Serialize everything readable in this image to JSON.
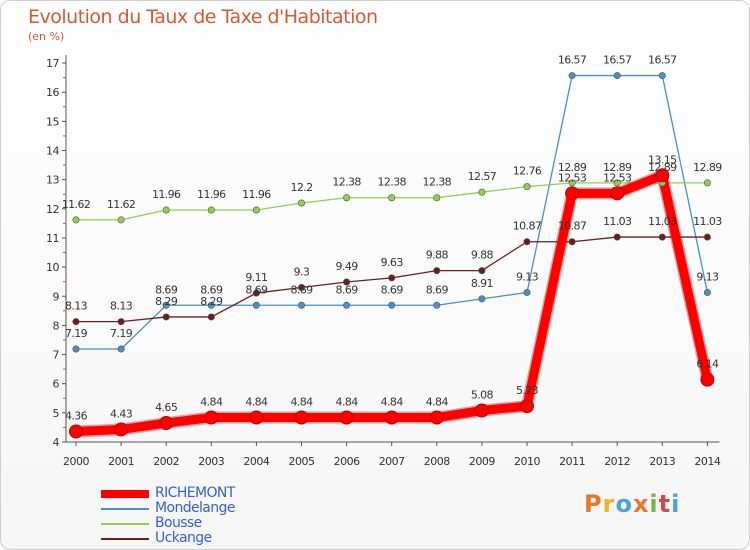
{
  "header": {
    "title": "Evolution du Taux de Taxe d'Habitation",
    "unit": "(en %)"
  },
  "logo": {
    "text": "Proxiti",
    "colors": [
      "#e8772e",
      "#f0b51e",
      "#4aa3df",
      "#e8772e",
      "#7ab648",
      "#d44",
      "#4aa3df"
    ]
  },
  "chart_data": {
    "type": "line",
    "title": "Evolution du Taux de Taxe d'Habitation",
    "ylabel": "(en %)",
    "xlabel": "",
    "x": [
      "2000",
      "2001",
      "2002",
      "2003",
      "2004",
      "2005",
      "2006",
      "2007",
      "2008",
      "2009",
      "2010",
      "2011",
      "2012",
      "2013",
      "2014"
    ],
    "ylim": [
      4,
      17
    ],
    "yticks": [
      "4",
      "5",
      "6",
      "7",
      "8",
      "9",
      "10",
      "11",
      "12",
      "13",
      "14",
      "15",
      "16",
      "17"
    ],
    "grid": false,
    "legend_position": "bottom-left",
    "series": [
      {
        "name": "RICHEMONT",
        "color": "#ff0000",
        "thick": true,
        "values": [
          4.36,
          4.43,
          4.65,
          4.84,
          4.84,
          4.84,
          4.84,
          4.84,
          4.84,
          5.08,
          5.23,
          12.53,
          12.53,
          13.15,
          6.14
        ],
        "labels": [
          "4.36",
          "4.43",
          "4.65",
          "4.84",
          "4.84",
          "4.84",
          "4.84",
          "4.84",
          "4.84",
          "5.08",
          "5.23",
          "12.53",
          "12.53",
          "13.15",
          "6.14"
        ]
      },
      {
        "name": "Mondelange",
        "color": "#4b8fc7",
        "thick": false,
        "values": [
          7.19,
          7.19,
          8.69,
          8.69,
          8.69,
          8.69,
          8.69,
          8.69,
          8.69,
          8.91,
          9.13,
          16.57,
          16.57,
          16.57,
          9.13
        ],
        "labels": [
          "7.19",
          "7.19",
          "8.69",
          "8.69",
          "8.69",
          "8.69",
          "8.69",
          "8.69",
          "8.69",
          "8.91",
          "9.13",
          "16.57",
          "16.57",
          "16.57",
          "9.13"
        ]
      },
      {
        "name": "Bousse",
        "color": "#8fd14f",
        "thick": false,
        "values": [
          11.62,
          11.62,
          11.96,
          11.96,
          11.96,
          12.2,
          12.38,
          12.38,
          12.38,
          12.57,
          12.76,
          12.89,
          12.89,
          12.89,
          12.89
        ],
        "labels": [
          "11.62",
          "11.62",
          "11.96",
          "11.96",
          "11.96",
          "12.2",
          "12.38",
          "12.38",
          "12.38",
          "12.57",
          "12.76",
          "12.89",
          "12.89",
          "12.89",
          "12.89"
        ]
      },
      {
        "name": "Uckange",
        "color": "#6b1e1e",
        "thick": false,
        "values": [
          8.13,
          8.13,
          8.29,
          8.29,
          9.11,
          9.3,
          9.49,
          9.63,
          9.88,
          9.88,
          10.87,
          10.87,
          11.03,
          11.03,
          11.03
        ],
        "labels": [
          "8.13",
          "8.13",
          "8.29",
          "8.29",
          "9.11",
          "9.3",
          "9.49",
          "9.63",
          "9.88",
          "9.88",
          "10.87",
          "10.87",
          "11.03",
          "11.03",
          "11.03"
        ]
      }
    ]
  }
}
